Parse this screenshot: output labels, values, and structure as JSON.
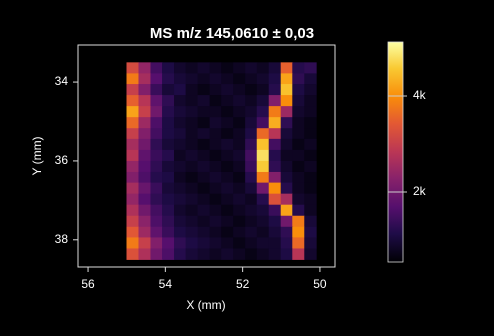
{
  "chart_data": {
    "type": "heatmap",
    "title": "MS m/z 145,0610 ± 0,03",
    "xlabel": "X (mm)",
    "ylabel": "Y (mm)",
    "x": [
      54.85,
      54.54,
      54.23,
      53.93,
      53.62,
      53.32,
      53.01,
      52.7,
      52.4,
      52.09,
      51.78,
      51.48,
      51.17,
      50.86,
      50.56,
      50.25
    ],
    "y": [
      33.64,
      33.92,
      34.19,
      34.47,
      34.75,
      35.03,
      35.31,
      35.58,
      35.86,
      36.14,
      36.42,
      36.69,
      36.97,
      37.25,
      37.53,
      37.81,
      38.08,
      38.36
    ],
    "values": [
      [
        3200,
        2400,
        1500,
        1100,
        900,
        800,
        900,
        800,
        700,
        800,
        900,
        800,
        1000,
        3500,
        1200,
        1300
      ],
      [
        3800,
        2600,
        1700,
        1200,
        1000,
        900,
        800,
        900,
        800,
        700,
        800,
        900,
        1100,
        4200,
        1300,
        1000
      ],
      [
        3000,
        2200,
        1400,
        1000,
        1100,
        800,
        700,
        800,
        900,
        800,
        700,
        800,
        1200,
        4500,
        1100,
        900
      ],
      [
        3500,
        2800,
        1800,
        1300,
        900,
        800,
        900,
        700,
        800,
        900,
        800,
        1000,
        2200,
        4000,
        1000,
        800
      ],
      [
        4200,
        3000,
        2000,
        1200,
        1000,
        900,
        800,
        800,
        700,
        800,
        900,
        1200,
        3800,
        2500,
        900,
        800
      ],
      [
        3600,
        2500,
        1600,
        1100,
        900,
        800,
        700,
        900,
        800,
        700,
        1000,
        1500,
        4300,
        1300,
        800,
        700
      ],
      [
        3000,
        2200,
        1500,
        1100,
        1000,
        800,
        900,
        800,
        700,
        800,
        1100,
        3600,
        2800,
        1000,
        800,
        700
      ],
      [
        2600,
        2000,
        1300,
        1000,
        900,
        800,
        700,
        800,
        900,
        800,
        1300,
        4500,
        1500,
        900,
        700,
        800
      ],
      [
        2800,
        1800,
        1400,
        1200,
        800,
        900,
        800,
        700,
        800,
        900,
        1500,
        4800,
        1200,
        800,
        800,
        700
      ],
      [
        2400,
        1700,
        1300,
        1000,
        900,
        800,
        900,
        800,
        700,
        800,
        1400,
        4600,
        1300,
        900,
        700,
        800
      ],
      [
        2200,
        1600,
        1200,
        1100,
        800,
        700,
        800,
        900,
        800,
        700,
        1200,
        3800,
        2200,
        1000,
        800,
        700
      ],
      [
        2600,
        1900,
        1400,
        1000,
        900,
        800,
        700,
        800,
        900,
        800,
        1000,
        2000,
        4000,
        1200,
        800,
        700
      ],
      [
        2400,
        1700,
        1300,
        1100,
        1000,
        900,
        800,
        700,
        800,
        900,
        800,
        1200,
        3300,
        2600,
        900,
        800
      ],
      [
        2700,
        2000,
        1500,
        1200,
        900,
        800,
        900,
        800,
        700,
        800,
        900,
        1000,
        1400,
        4200,
        1200,
        800
      ],
      [
        3000,
        2300,
        1600,
        1300,
        1000,
        900,
        800,
        900,
        800,
        700,
        800,
        900,
        1100,
        2000,
        3800,
        1000
      ],
      [
        3400,
        2500,
        1800,
        1400,
        1100,
        1000,
        900,
        800,
        700,
        800,
        900,
        800,
        1000,
        1300,
        4000,
        1100
      ],
      [
        3800,
        3000,
        2200,
        1700,
        1300,
        1100,
        1000,
        900,
        800,
        700,
        800,
        900,
        900,
        1200,
        3600,
        1000
      ],
      [
        3300,
        2700,
        2000,
        1600,
        1200,
        1000,
        900,
        800,
        900,
        800,
        700,
        800,
        900,
        1100,
        2800,
        900
      ]
    ],
    "xlim": [
      56.26,
      49.61
    ],
    "xticks": [
      56,
      54,
      52,
      50
    ],
    "ylim": [
      38.69,
      33.06
    ],
    "yticks": [
      34,
      36,
      38
    ],
    "zlim": [
      540,
      5125
    ],
    "zticks": [
      {
        "value": 2000,
        "label": "2k"
      },
      {
        "value": 4000,
        "label": "4k"
      }
    ],
    "colormap": "inferno"
  }
}
